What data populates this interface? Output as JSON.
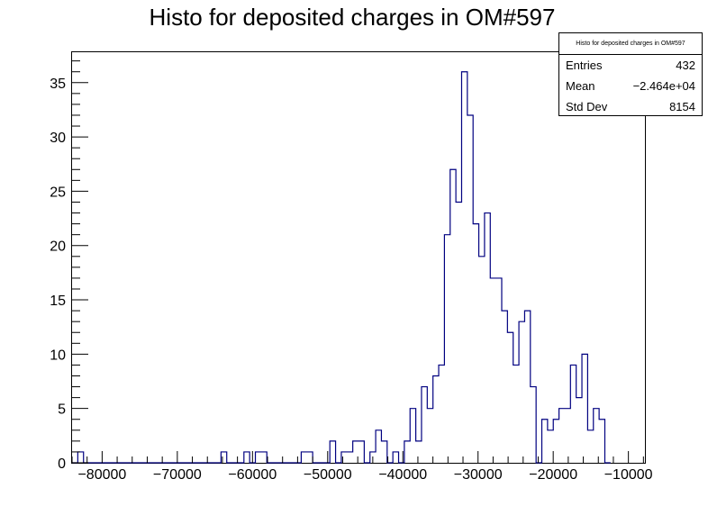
{
  "chart_data": {
    "type": "histogram",
    "title": "Histo for deposited charges in OM#597",
    "xlabel": "",
    "ylabel": "",
    "xlim": [
      -84000,
      -7800
    ],
    "ylim": [
      0,
      37.8
    ],
    "x_ticks": [
      -80000,
      -70000,
      -60000,
      -50000,
      -40000,
      -30000,
      -20000,
      -10000
    ],
    "x_tick_labels": [
      "−80000",
      "−70000",
      "−60000",
      "−50000",
      "−40000",
      "−30000",
      "−20000",
      "−10000"
    ],
    "y_ticks": [
      0,
      5,
      10,
      15,
      20,
      25,
      30,
      35
    ],
    "y_tick_labels": [
      "0",
      "5",
      "10",
      "15",
      "20",
      "25",
      "30",
      "35"
    ],
    "bin_start": -84000,
    "bin_width": 762,
    "counts": [
      0,
      1,
      0,
      0,
      0,
      0,
      0,
      0,
      0,
      0,
      0,
      0,
      0,
      0,
      0,
      0,
      0,
      0,
      0,
      0,
      0,
      0,
      0,
      0,
      0,
      0,
      1,
      0,
      0,
      0,
      1,
      0,
      1,
      1,
      0,
      0,
      0,
      0,
      0,
      0,
      1,
      1,
      0,
      0,
      0,
      2,
      0,
      1,
      1,
      2,
      2,
      0,
      1,
      3,
      2,
      0,
      1,
      0,
      2,
      5,
      2,
      7,
      5,
      8,
      9,
      21,
      27,
      24,
      36,
      32,
      22,
      19,
      23,
      17,
      17,
      14,
      12,
      9,
      13,
      14,
      7,
      0,
      4,
      3,
      4,
      5,
      5,
      9,
      6,
      10,
      3,
      5,
      4,
      0
    ],
    "line_color": "#000080",
    "stats": {
      "title": "Histo for deposited charges in OM#597",
      "entries_label": "Entries",
      "entries_value": "432",
      "mean_label": "Mean",
      "mean_value": "−2.464e+04",
      "stddev_label": "Std Dev",
      "stddev_value": "8154"
    }
  }
}
